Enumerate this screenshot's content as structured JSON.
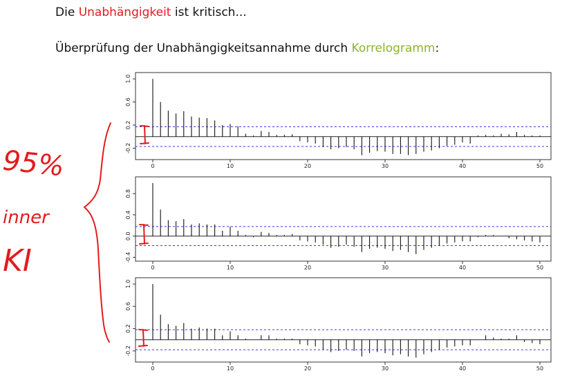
{
  "header": {
    "line1_pre": "Die ",
    "line1_highlight": "Unabhängigkeit",
    "line1_post": " ist kritisch...",
    "line2_pre": "Überprüfung der Unabhängigkeitsannahme durch ",
    "line2_highlight": "Korrelogramm",
    "line2_post": ":"
  },
  "annotation": {
    "line1": "95%",
    "line2": "inner",
    "line3": "KI"
  },
  "colors": {
    "highlight_red": "#e41a1c",
    "highlight_green": "#8db32b",
    "ci_line": "#3a3ad6",
    "ink_red": "#e41a1c"
  },
  "chart_data": [
    {
      "type": "bar",
      "x": [
        0,
        1,
        2,
        3,
        4,
        5,
        6,
        7,
        8,
        9,
        10,
        11,
        12,
        13,
        14,
        15,
        16,
        17,
        18,
        19,
        20,
        21,
        22,
        23,
        24,
        25,
        26,
        27,
        28,
        29,
        30,
        31,
        32,
        33,
        34,
        35,
        36,
        37,
        38,
        39,
        40,
        41,
        42,
        43,
        44,
        45,
        46,
        47,
        48,
        49,
        50
      ],
      "values": [
        1.0,
        0.6,
        0.45,
        0.4,
        0.44,
        0.35,
        0.33,
        0.32,
        0.28,
        0.2,
        0.22,
        0.18,
        0.05,
        0.02,
        0.1,
        0.08,
        0.03,
        0.03,
        0.04,
        -0.08,
        -0.1,
        -0.12,
        -0.18,
        -0.22,
        -0.2,
        -0.18,
        -0.22,
        -0.32,
        -0.28,
        -0.25,
        -0.26,
        -0.3,
        -0.3,
        -0.32,
        -0.3,
        -0.26,
        -0.24,
        -0.2,
        -0.16,
        -0.14,
        -0.1,
        -0.12,
        0.02,
        0.03,
        0.02,
        0.05,
        0.04,
        0.08,
        0.03,
        0.02,
        0.02
      ],
      "ci": 0.17,
      "ylim": [
        -0.35,
        1.05
      ],
      "yticks": [
        -0.2,
        0.2,
        0.6,
        1.0
      ],
      "xticks": [
        0,
        10,
        20,
        30,
        40,
        50
      ]
    },
    {
      "type": "bar",
      "x": [
        0,
        1,
        2,
        3,
        4,
        5,
        6,
        7,
        8,
        9,
        10,
        11,
        12,
        13,
        14,
        15,
        16,
        17,
        18,
        19,
        20,
        21,
        22,
        23,
        24,
        25,
        26,
        27,
        28,
        29,
        30,
        31,
        32,
        33,
        34,
        35,
        36,
        37,
        38,
        39,
        40,
        41,
        42,
        43,
        44,
        45,
        46,
        47,
        48,
        49,
        50
      ],
      "values": [
        1.0,
        0.5,
        0.3,
        0.28,
        0.32,
        0.22,
        0.24,
        0.22,
        0.22,
        0.1,
        0.18,
        0.1,
        0.02,
        -0.02,
        0.08,
        0.06,
        0.02,
        0.02,
        0.04,
        -0.08,
        -0.1,
        -0.12,
        -0.16,
        -0.22,
        -0.2,
        -0.16,
        -0.2,
        -0.3,
        -0.24,
        -0.22,
        -0.24,
        -0.28,
        -0.26,
        -0.3,
        -0.34,
        -0.26,
        -0.22,
        -0.18,
        -0.14,
        -0.12,
        -0.1,
        -0.1,
        -0.02,
        0.02,
        0.02,
        0.0,
        -0.04,
        -0.06,
        -0.08,
        -0.1,
        -0.12
      ],
      "ci": 0.18,
      "ylim": [
        -0.42,
        1.05
      ],
      "yticks": [
        -0.4,
        0.0,
        0.4,
        0.8
      ],
      "xticks": [
        0,
        10,
        20,
        30,
        40,
        50
      ]
    },
    {
      "type": "bar",
      "x": [
        0,
        1,
        2,
        3,
        4,
        5,
        6,
        7,
        8,
        9,
        10,
        11,
        12,
        13,
        14,
        15,
        16,
        17,
        18,
        19,
        20,
        21,
        22,
        23,
        24,
        25,
        26,
        27,
        28,
        29,
        30,
        31,
        32,
        33,
        34,
        35,
        36,
        37,
        38,
        39,
        40,
        41,
        42,
        43,
        44,
        45,
        46,
        47,
        48,
        49,
        50
      ],
      "values": [
        1.0,
        0.45,
        0.28,
        0.25,
        0.3,
        0.2,
        0.22,
        0.2,
        0.2,
        0.08,
        0.15,
        0.08,
        0.02,
        0.0,
        0.08,
        0.08,
        0.02,
        0.02,
        0.02,
        -0.08,
        -0.1,
        -0.12,
        -0.18,
        -0.22,
        -0.2,
        -0.18,
        -0.2,
        -0.3,
        -0.24,
        -0.22,
        -0.24,
        -0.28,
        -0.26,
        -0.3,
        -0.32,
        -0.26,
        -0.22,
        -0.18,
        -0.14,
        -0.12,
        -0.1,
        -0.1,
        0.0,
        0.08,
        0.04,
        0.02,
        0.02,
        0.08,
        -0.04,
        -0.06,
        -0.08
      ],
      "ci": 0.18,
      "ylim": [
        -0.35,
        1.05
      ],
      "yticks": [
        -0.2,
        0.2,
        0.6,
        1.0
      ],
      "xticks": [
        0,
        10,
        20,
        30,
        40,
        50
      ]
    }
  ]
}
